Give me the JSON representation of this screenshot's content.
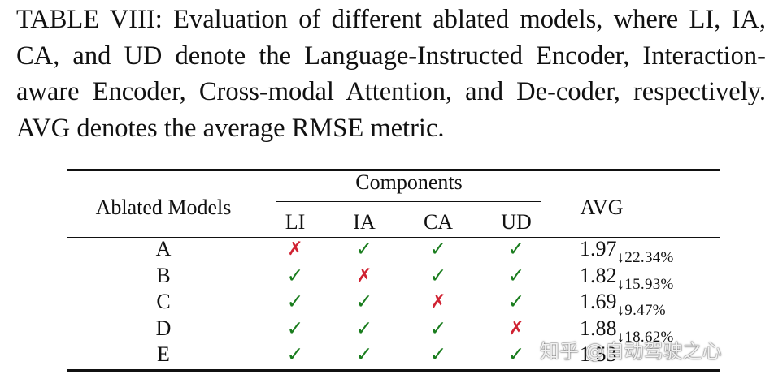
{
  "caption": "TABLE VIII: Evaluation of different ablated models, where LI, IA, CA, and UD denote the Language-Instructed Encoder, Interaction-aware Encoder, Cross-modal Attention, and De-coder, respectively. AVG denotes the average RMSE metric.",
  "table": {
    "header_model": "Ablated Models",
    "header_group": "Components",
    "header_avg": "AVG",
    "components": [
      "LI",
      "IA",
      "CA",
      "UD"
    ],
    "rows": [
      {
        "model": "A",
        "marks": [
          "✗",
          "✓",
          "✓",
          "✓"
        ],
        "avg": "1.97",
        "delta": "↓22.34%"
      },
      {
        "model": "B",
        "marks": [
          "✓",
          "✗",
          "✓",
          "✓"
        ],
        "avg": "1.82",
        "delta": "↓15.93%"
      },
      {
        "model": "C",
        "marks": [
          "✓",
          "✓",
          "✗",
          "✓"
        ],
        "avg": "1.69",
        "delta": "↓9.47%"
      },
      {
        "model": "D",
        "marks": [
          "✓",
          "✓",
          "✓",
          "✗"
        ],
        "avg": "1.88",
        "delta": "↓18.62%"
      },
      {
        "model": "E",
        "marks": [
          "✓",
          "✓",
          "✓",
          "✓"
        ],
        "avg": "1.53",
        "delta": ""
      }
    ],
    "mark_colors": {
      "yes": "#1a7d1e",
      "no": "#d02232"
    }
  },
  "watermark": "知乎 @自动驾驶之心"
}
